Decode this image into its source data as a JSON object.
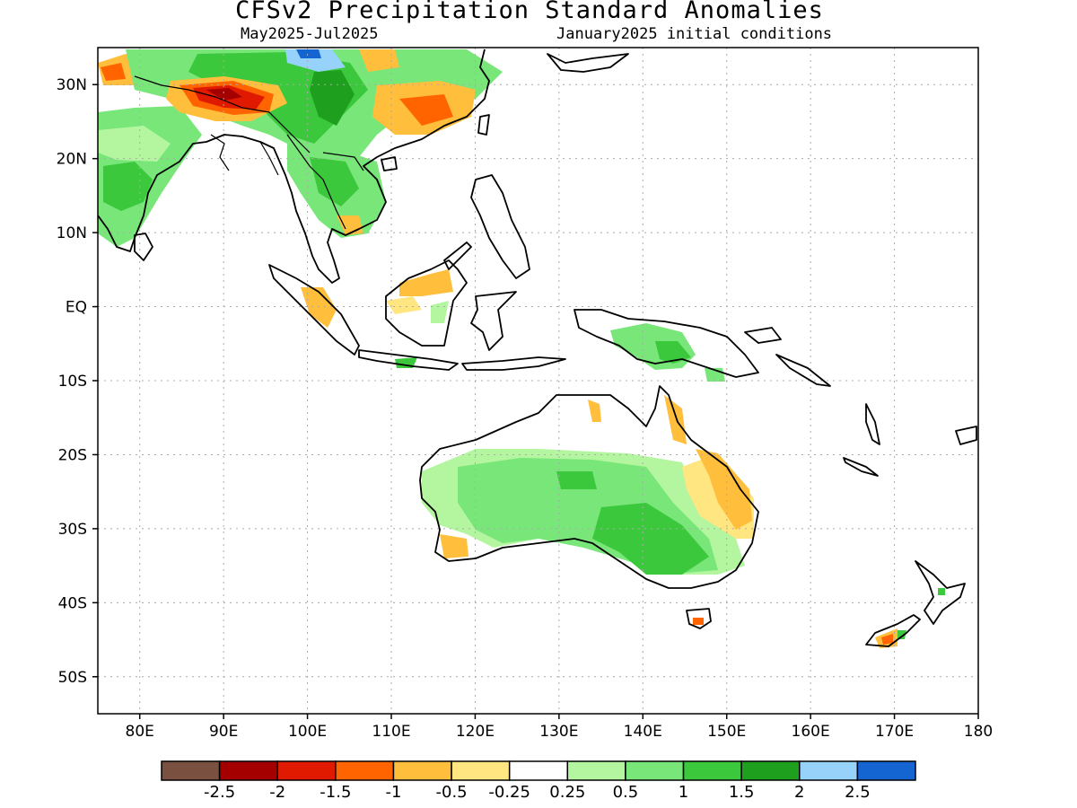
{
  "title": "CFSv2 Precipitation Standard Anomalies",
  "period": "May2025-Jul2025",
  "init_conditions": "January2025 initial conditions",
  "map": {
    "lon_range": [
      75,
      180
    ],
    "lat_range": [
      -55,
      35
    ],
    "gridlines": true,
    "lat_ticks": [
      "30N",
      "20N",
      "10N",
      "EQ",
      "10S",
      "20S",
      "30S",
      "40S",
      "50S"
    ],
    "lon_ticks": [
      "80E",
      "90E",
      "100E",
      "110E",
      "120E",
      "130E",
      "140E",
      "150E",
      "160E",
      "170E",
      "180"
    ]
  },
  "colorbar": {
    "colors": [
      "#7a5040",
      "#a50000",
      "#e01a00",
      "#ff6400",
      "#ffbe3c",
      "#ffe680",
      "#ffffff",
      "#b4f5a0",
      "#78e678",
      "#3cc83c",
      "#1ea01e",
      "#96d2fa",
      "#1464d2"
    ],
    "labels": [
      "-2.5",
      "-2",
      "-1.5",
      "-1",
      "-0.5",
      "-0.25",
      "0.25",
      "0.5",
      "1",
      "1.5",
      "2",
      "2.5"
    ]
  }
}
